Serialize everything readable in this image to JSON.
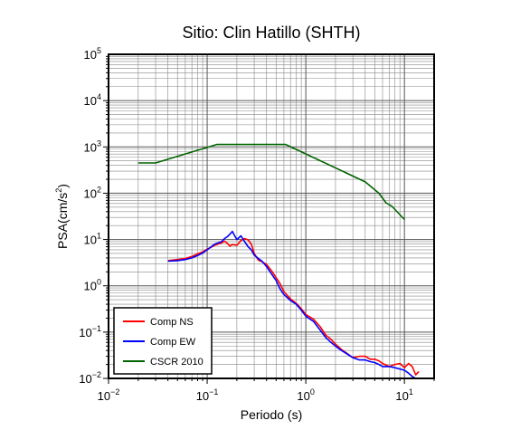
{
  "chart_data": {
    "type": "line",
    "title": "Sitio: Clin Hatillo (SHTH)",
    "xlabel": "Periodo (s)",
    "ylabel": "PSA(cm/s",
    "ylabel_sup": "2",
    "ylabel_close": ")",
    "x_scale": "log",
    "y_scale": "log",
    "xlim": [
      0.01,
      20
    ],
    "ylim": [
      0.01,
      100000
    ],
    "grid": true,
    "legend_position": "bottom-left",
    "x_ticks": [
      {
        "value": 0.01,
        "base": "10",
        "exp": "−2"
      },
      {
        "value": 0.1,
        "base": "10",
        "exp": "−1"
      },
      {
        "value": 1,
        "base": "10",
        "exp": "0"
      },
      {
        "value": 10,
        "base": "10",
        "exp": "1"
      }
    ],
    "y_ticks": [
      {
        "value": 0.01,
        "base": "10",
        "exp": "−2"
      },
      {
        "value": 0.1,
        "base": "10",
        "exp": "−1"
      },
      {
        "value": 1,
        "base": "10",
        "exp": "0"
      },
      {
        "value": 10,
        "base": "10",
        "exp": "1"
      },
      {
        "value": 100,
        "base": "10",
        "exp": "2"
      },
      {
        "value": 1000,
        "base": "10",
        "exp": "3"
      },
      {
        "value": 10000,
        "base": "10",
        "exp": "4"
      },
      {
        "value": 100000,
        "base": "10",
        "exp": "5"
      }
    ],
    "series": [
      {
        "name": "Comp NS",
        "color": "#ff0000",
        "x": [
          0.04,
          0.05,
          0.06,
          0.07,
          0.08,
          0.09,
          0.1,
          0.11,
          0.12,
          0.13,
          0.14,
          0.15,
          0.16,
          0.17,
          0.18,
          0.2,
          0.22,
          0.24,
          0.26,
          0.28,
          0.3,
          0.33,
          0.36,
          0.4,
          0.45,
          0.5,
          0.55,
          0.6,
          0.7,
          0.8,
          0.9,
          1.0,
          1.2,
          1.4,
          1.6,
          1.8,
          2.0,
          2.3,
          2.6,
          3.0,
          3.5,
          4.0,
          4.5,
          5.0,
          5.5,
          6.0,
          7.0,
          8.0,
          9.0,
          10.0,
          11.0,
          12.0,
          13.0,
          14.0
        ],
        "y": [
          3.5,
          3.7,
          3.9,
          4.3,
          4.9,
          5.4,
          6.2,
          6.8,
          7.6,
          8.0,
          8.5,
          9.2,
          8.3,
          7.2,
          7.8,
          7.5,
          9.5,
          10.5,
          9.8,
          8.0,
          5.0,
          3.6,
          3.3,
          2.9,
          2.1,
          1.5,
          1.1,
          0.75,
          0.52,
          0.42,
          0.32,
          0.24,
          0.19,
          0.13,
          0.085,
          0.07,
          0.055,
          0.042,
          0.035,
          0.028,
          0.03,
          0.03,
          0.026,
          0.026,
          0.024,
          0.021,
          0.018,
          0.02,
          0.021,
          0.017,
          0.021,
          0.018,
          0.012,
          0.014
        ]
      },
      {
        "name": "Comp EW",
        "color": "#0000ff",
        "x": [
          0.04,
          0.05,
          0.06,
          0.07,
          0.08,
          0.09,
          0.1,
          0.11,
          0.12,
          0.13,
          0.14,
          0.15,
          0.16,
          0.17,
          0.18,
          0.19,
          0.2,
          0.22,
          0.24,
          0.26,
          0.28,
          0.3,
          0.33,
          0.36,
          0.4,
          0.45,
          0.5,
          0.55,
          0.6,
          0.7,
          0.8,
          0.9,
          1.0,
          1.2,
          1.4,
          1.6,
          1.8,
          2.0,
          2.3,
          2.6,
          3.0,
          3.5,
          4.0,
          4.5,
          5.0,
          5.5,
          6.0,
          7.0,
          8.0,
          9.0,
          10.0,
          11.0,
          12.0,
          13.0
        ],
        "y": [
          3.4,
          3.5,
          3.7,
          4.0,
          4.5,
          5.1,
          6.0,
          7.0,
          8.0,
          8.5,
          9.0,
          10.5,
          11.5,
          13.0,
          15.0,
          12.0,
          10.0,
          12.0,
          9.0,
          7.0,
          6.0,
          4.6,
          3.9,
          3.4,
          2.6,
          1.8,
          1.3,
          0.85,
          0.65,
          0.48,
          0.4,
          0.3,
          0.22,
          0.17,
          0.11,
          0.075,
          0.06,
          0.05,
          0.04,
          0.034,
          0.028,
          0.025,
          0.025,
          0.023,
          0.022,
          0.02,
          0.018,
          0.018,
          0.017,
          0.016,
          0.015,
          0.013,
          0.011,
          0.01
        ]
      },
      {
        "name": "CSCR 2010",
        "color": "#006400",
        "x": [
          0.02,
          0.03,
          0.125,
          0.625,
          4.0,
          5.5,
          6.5,
          7.5,
          10.0
        ],
        "y": [
          450,
          450,
          1130,
          1130,
          176,
          100,
          62,
          52,
          27
        ]
      }
    ]
  }
}
